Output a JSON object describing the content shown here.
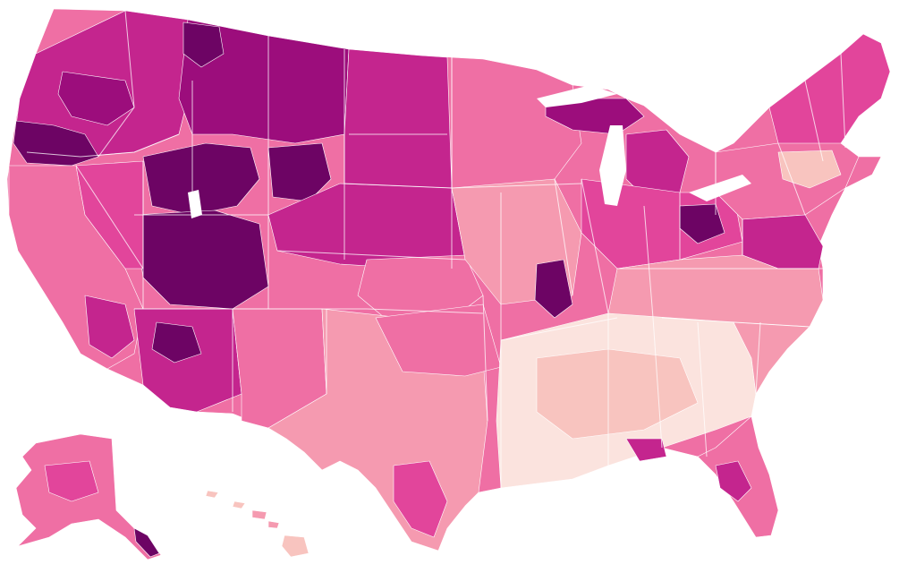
{
  "map": {
    "type": "choropleth",
    "regions_shown": [
      "contiguous-united-states",
      "alaska",
      "hawaii"
    ],
    "legend": null,
    "palette": {
      "l0": "#fbe3de",
      "l1": "#f8c4bf",
      "l2": "#f59ab0",
      "l3": "#ef6fa4",
      "l4": "#e2459b",
      "l5": "#c4258e",
      "l6": "#9c0d7c",
      "l7": "#6d0464",
      "water": "#ffffff",
      "border": "#ffffff"
    }
  }
}
